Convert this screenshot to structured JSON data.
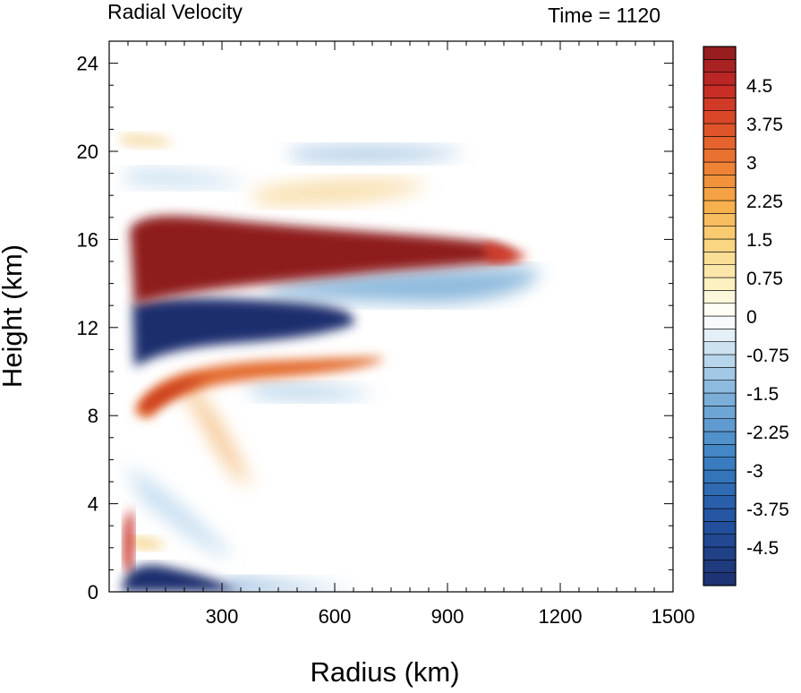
{
  "chart_data": {
    "type": "heatmap",
    "title_left": "Radial Velocity",
    "title_right": "Time = 1120",
    "xlabel": "Radius (km)",
    "ylabel": "Height (km)",
    "xlim": [
      0,
      1500
    ],
    "ylim": [
      0,
      25
    ],
    "x_ticks": [
      300,
      600,
      900,
      1200,
      1500
    ],
    "y_ticks": [
      0,
      4,
      8,
      12,
      16,
      20,
      24
    ],
    "colorbar": {
      "range": [
        -5.25,
        5.25
      ],
      "step": 0.25,
      "tick_values": [
        4.5,
        3.75,
        3,
        2.25,
        1.5,
        0.75,
        0,
        -0.75,
        -1.5,
        -2.25,
        -3,
        -3.75,
        -4.5
      ],
      "tick_labels": [
        "4.5",
        "3.75",
        "3",
        "2.25",
        "1.5",
        "0.75",
        "0",
        "-0.75",
        "-1.5",
        "-2.25",
        "-3",
        "-3.75",
        "-4.5"
      ],
      "colormap": "blue-white-red diverging",
      "color_low": "#1e2f6e",
      "color_high": "#8f1b1d"
    },
    "features": [
      {
        "desc": "strong outflow",
        "x": [
          60,
          1150
        ],
        "y": [
          13.8,
          17.2
        ],
        "value": 5
      },
      {
        "desc": "strong inflow",
        "x": [
          60,
          700
        ],
        "y": [
          11.3,
          13.6
        ],
        "value": -5
      },
      {
        "desc": "moderate outflow",
        "x": [
          70,
          800
        ],
        "y": [
          8.5,
          10.5
        ],
        "value": 2.5
      },
      {
        "desc": "boundary layer inflow",
        "x": [
          50,
          400
        ],
        "y": [
          0,
          1
        ],
        "value": -5
      },
      {
        "desc": "low level outflow",
        "x": [
          40,
          80
        ],
        "y": [
          0.5,
          3.8
        ],
        "value": 5
      },
      {
        "desc": "weak inflow band",
        "x": [
          500,
          1200
        ],
        "y": [
          12.5,
          14
        ],
        "value": -1.2
      },
      {
        "desc": "upper inflow",
        "x": [
          500,
          900
        ],
        "y": [
          19.8,
          20.6
        ],
        "value": -1.4
      },
      {
        "desc": "upper outflow",
        "x": [
          350,
          900
        ],
        "y": [
          17.5,
          18.8
        ],
        "value": 0.8
      }
    ]
  }
}
